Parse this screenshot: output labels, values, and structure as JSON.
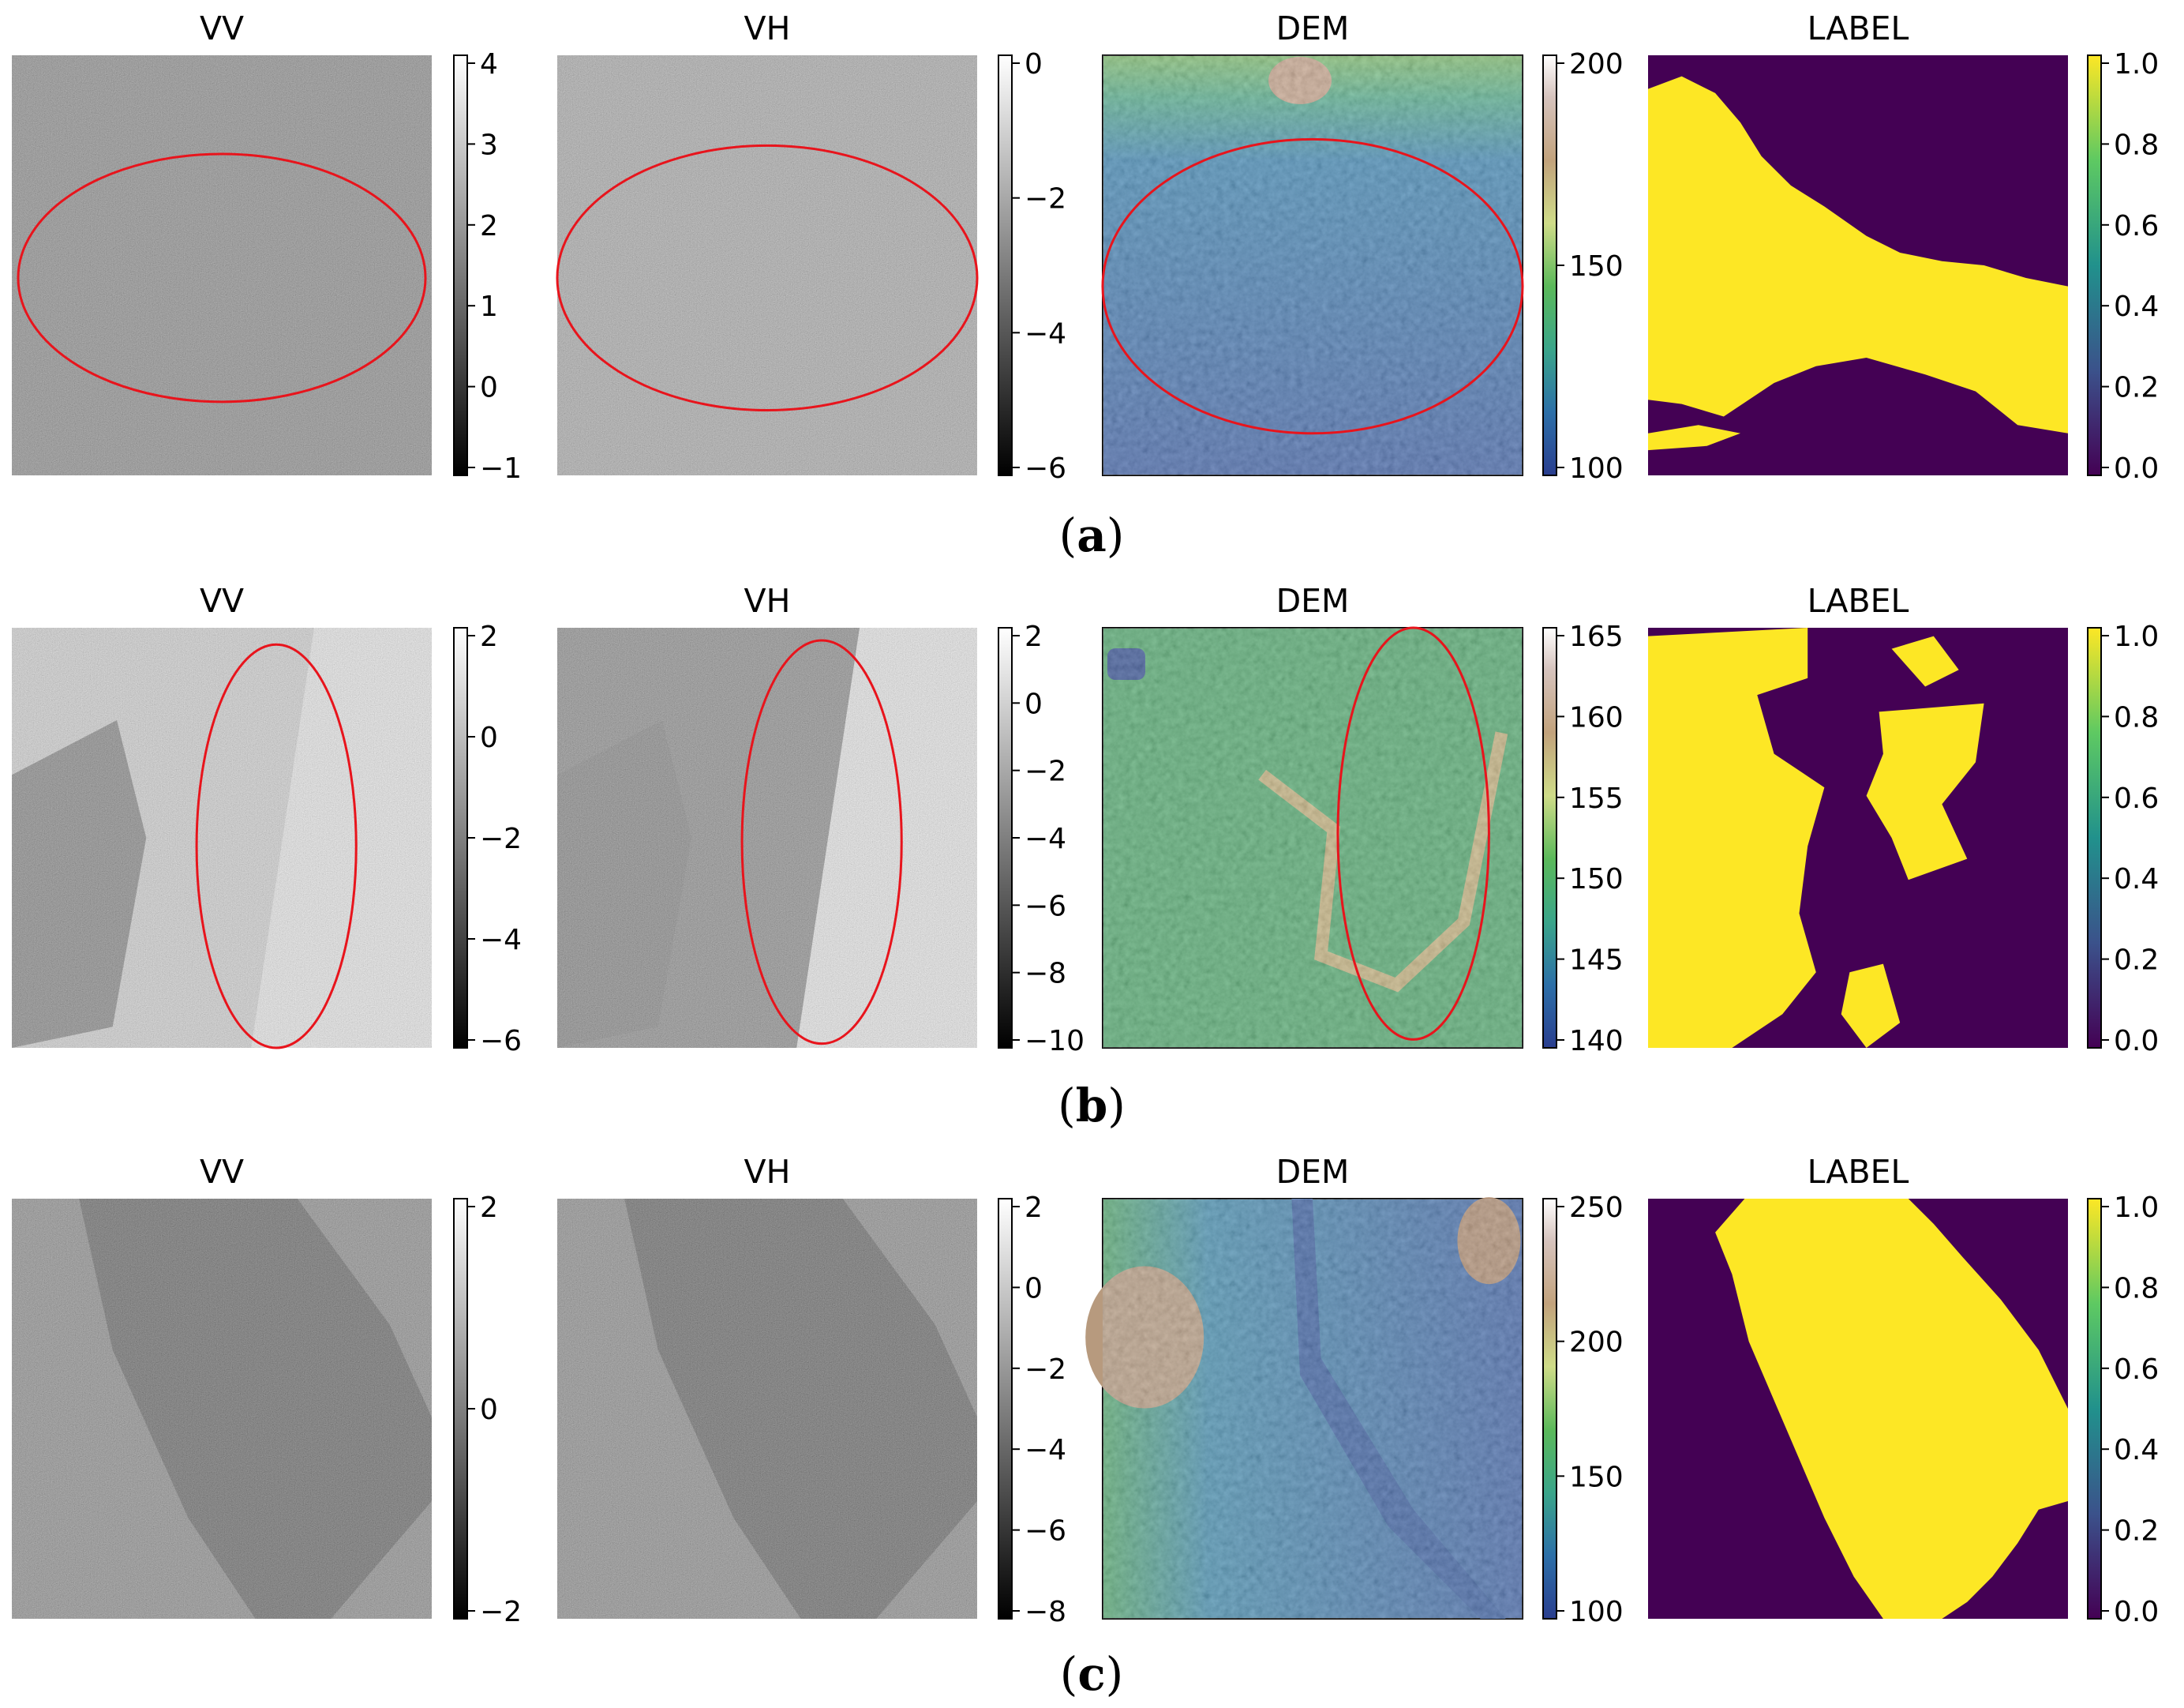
{
  "rows": [
    {
      "caption_letter": "a",
      "panels": [
        {
          "title": "VV",
          "kind": "sar",
          "tone": "mid",
          "colorbar": {
            "cmap": "gray",
            "ticks": [
              "4",
              "3",
              "2",
              "1",
              "0",
              "−1"
            ]
          },
          "annotation": "red-ellipse"
        },
        {
          "title": "VH",
          "kind": "sar",
          "tone": "light",
          "colorbar": {
            "cmap": "gray",
            "ticks": [
              "0",
              "−2",
              "−4",
              "−6"
            ]
          },
          "annotation": "red-ellipse"
        },
        {
          "title": "DEM",
          "kind": "dem",
          "colorbar": {
            "cmap": "gist_earth",
            "ticks": [
              "200",
              "150",
              "100"
            ]
          },
          "annotation": "red-ellipse"
        },
        {
          "title": "LABEL",
          "kind": "label",
          "colorbar": {
            "cmap": "viridis",
            "ticks": [
              "1.0",
              "0.8",
              "0.6",
              "0.4",
              "0.2",
              "0.0"
            ]
          }
        }
      ]
    },
    {
      "caption_letter": "b",
      "panels": [
        {
          "title": "VV",
          "kind": "sar",
          "tone": "bright",
          "colorbar": {
            "cmap": "gray",
            "ticks": [
              "2",
              "0",
              "−2",
              "−4",
              "−6"
            ]
          },
          "annotation": "red-ellipse"
        },
        {
          "title": "VH",
          "kind": "sar",
          "tone": "mid",
          "colorbar": {
            "cmap": "gray",
            "ticks": [
              "2",
              "0",
              "−2",
              "−4",
              "−6",
              "−8",
              "−10"
            ]
          },
          "annotation": "red-ellipse"
        },
        {
          "title": "DEM",
          "kind": "dem",
          "colorbar": {
            "cmap": "gist_earth",
            "ticks": [
              "165",
              "160",
              "155",
              "150",
              "145",
              "140"
            ]
          },
          "annotation": "red-ellipse"
        },
        {
          "title": "LABEL",
          "kind": "label",
          "colorbar": {
            "cmap": "viridis",
            "ticks": [
              "1.0",
              "0.8",
              "0.6",
              "0.4",
              "0.2",
              "0.0"
            ]
          }
        }
      ]
    },
    {
      "caption_letter": "c",
      "panels": [
        {
          "title": "VV",
          "kind": "sar",
          "tone": "mid",
          "colorbar": {
            "cmap": "gray",
            "ticks": [
              "2",
              "0",
              "−2"
            ]
          }
        },
        {
          "title": "VH",
          "kind": "sar",
          "tone": "mid",
          "colorbar": {
            "cmap": "gray",
            "ticks": [
              "2",
              "0",
              "−2",
              "−4",
              "−6",
              "−8"
            ]
          }
        },
        {
          "title": "DEM",
          "kind": "dem",
          "colorbar": {
            "cmap": "gist_earth",
            "ticks": [
              "250",
              "200",
              "150",
              "100"
            ]
          }
        },
        {
          "title": "LABEL",
          "kind": "label",
          "colorbar": {
            "cmap": "viridis",
            "ticks": [
              "1.0",
              "0.8",
              "0.6",
              "0.4",
              "0.2",
              "0.0"
            ]
          }
        }
      ]
    }
  ],
  "colors": {
    "annotation": "#e8141c",
    "label_water": "#fde725",
    "label_land": "#440154"
  }
}
